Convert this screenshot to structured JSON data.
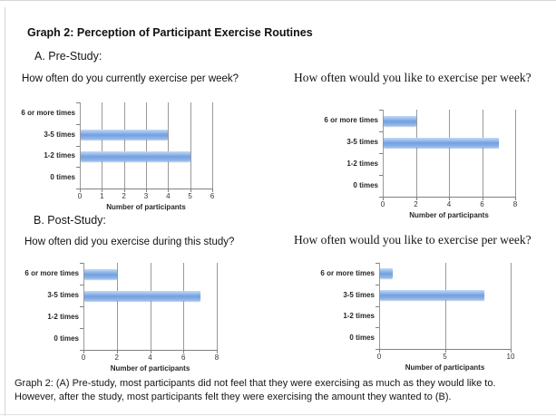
{
  "page": {
    "title": "Graph 2: Perception of Participant Exercise Routines",
    "section_a_label": "A. Pre-Study:",
    "section_b_label": "B. Post-Study:"
  },
  "caption": {
    "line1": "Graph 2: (A) Pre-study, most participants did not feel that they were exercising as much as they would like to.",
    "line2": "However, after the study, most participants felt they were exercising the amount they wanted to (B)."
  },
  "colors": {
    "bar_blue": "#7aa4e2",
    "gridline_gray": "#9a9a9a",
    "axis_gray": "#808080"
  },
  "chart_data": [
    {
      "id": "pre-current",
      "type": "bar",
      "orientation": "horizontal",
      "title": "How often do you currently exercise per week?",
      "categories": [
        "6 or more times",
        "3-5 times",
        "1-2 times",
        "0 times"
      ],
      "values": [
        0,
        4,
        5,
        0
      ],
      "xlabel": "Number of participants",
      "xlim": [
        0,
        6
      ],
      "xticks": [
        0,
        1,
        2,
        3,
        4,
        5,
        6
      ],
      "grid": true,
      "legend": false
    },
    {
      "id": "pre-desired",
      "type": "bar",
      "orientation": "horizontal",
      "title": "How often would you like to exercise per week?",
      "categories": [
        "6 or more times",
        "3-5 times",
        "1-2 times",
        "0 times"
      ],
      "values": [
        2,
        7,
        0,
        0
      ],
      "xlabel": "Number of participants",
      "xlim": [
        0,
        8
      ],
      "xticks": [
        0,
        2,
        4,
        6,
        8
      ],
      "grid": true,
      "legend": false
    },
    {
      "id": "post-during",
      "type": "bar",
      "orientation": "horizontal",
      "title": "How often did you exercise during this study?",
      "categories": [
        "6 or more times",
        "3-5 times",
        "1-2 times",
        "0 times"
      ],
      "values": [
        2,
        7,
        0,
        0
      ],
      "xlabel": "Number of participants",
      "xlim": [
        0,
        8
      ],
      "xticks": [
        0,
        2,
        4,
        6,
        8
      ],
      "grid": true,
      "legend": false
    },
    {
      "id": "post-desired",
      "type": "bar",
      "orientation": "horizontal",
      "title": "How often would you like to exercise per week?",
      "categories": [
        "6 or more times",
        "3-5 times",
        "1-2 times",
        "0 times"
      ],
      "values": [
        1,
        8,
        0,
        0
      ],
      "xlabel": "Number of participants",
      "xlim": [
        0,
        10
      ],
      "xticks": [
        0,
        5,
        10
      ],
      "grid": true,
      "legend": false
    }
  ]
}
